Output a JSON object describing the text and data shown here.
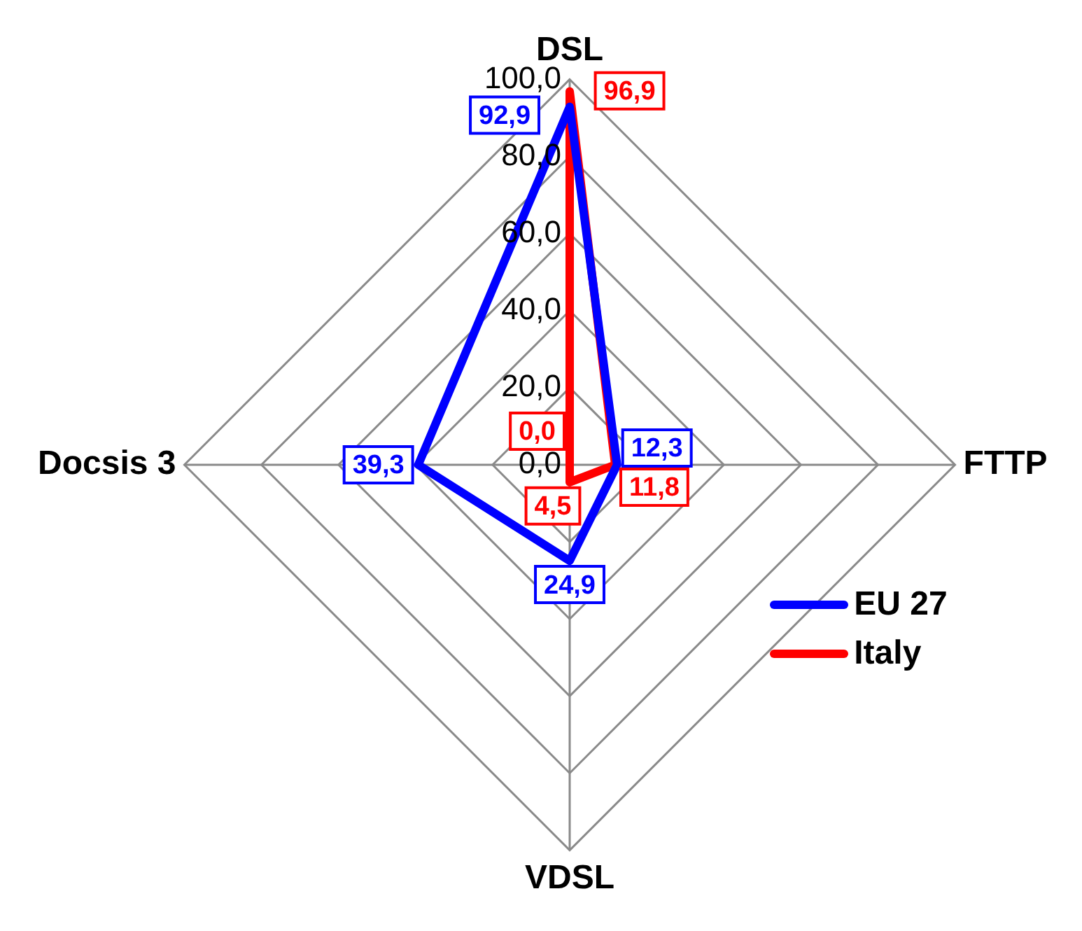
{
  "chart_data": {
    "type": "radar",
    "categories": [
      "DSL",
      "FTTP",
      "VDSL",
      "Docsis 3"
    ],
    "series": [
      {
        "name": "EU 27",
        "color": "#0000ff",
        "values": [
          92.9,
          12.3,
          24.9,
          39.3
        ],
        "value_labels": [
          "92,9",
          "12,3",
          "24,9",
          "39,3"
        ]
      },
      {
        "name": "Italy",
        "color": "#ff0000",
        "values": [
          96.9,
          11.8,
          4.5,
          0.0
        ],
        "value_labels": [
          "96,9",
          "11,8",
          "4,5",
          "0,0"
        ]
      }
    ],
    "ylim": [
      0,
      100
    ],
    "yticks": [
      {
        "value": 0,
        "label": "0,0"
      },
      {
        "value": 20,
        "label": "20,0"
      },
      {
        "value": 40,
        "label": "40,0"
      },
      {
        "value": 60,
        "label": "60,0"
      },
      {
        "value": 80,
        "label": "80,0"
      },
      {
        "value": 100,
        "label": "100,0"
      }
    ],
    "grid": true,
    "legend": "right",
    "marker": "none"
  }
}
